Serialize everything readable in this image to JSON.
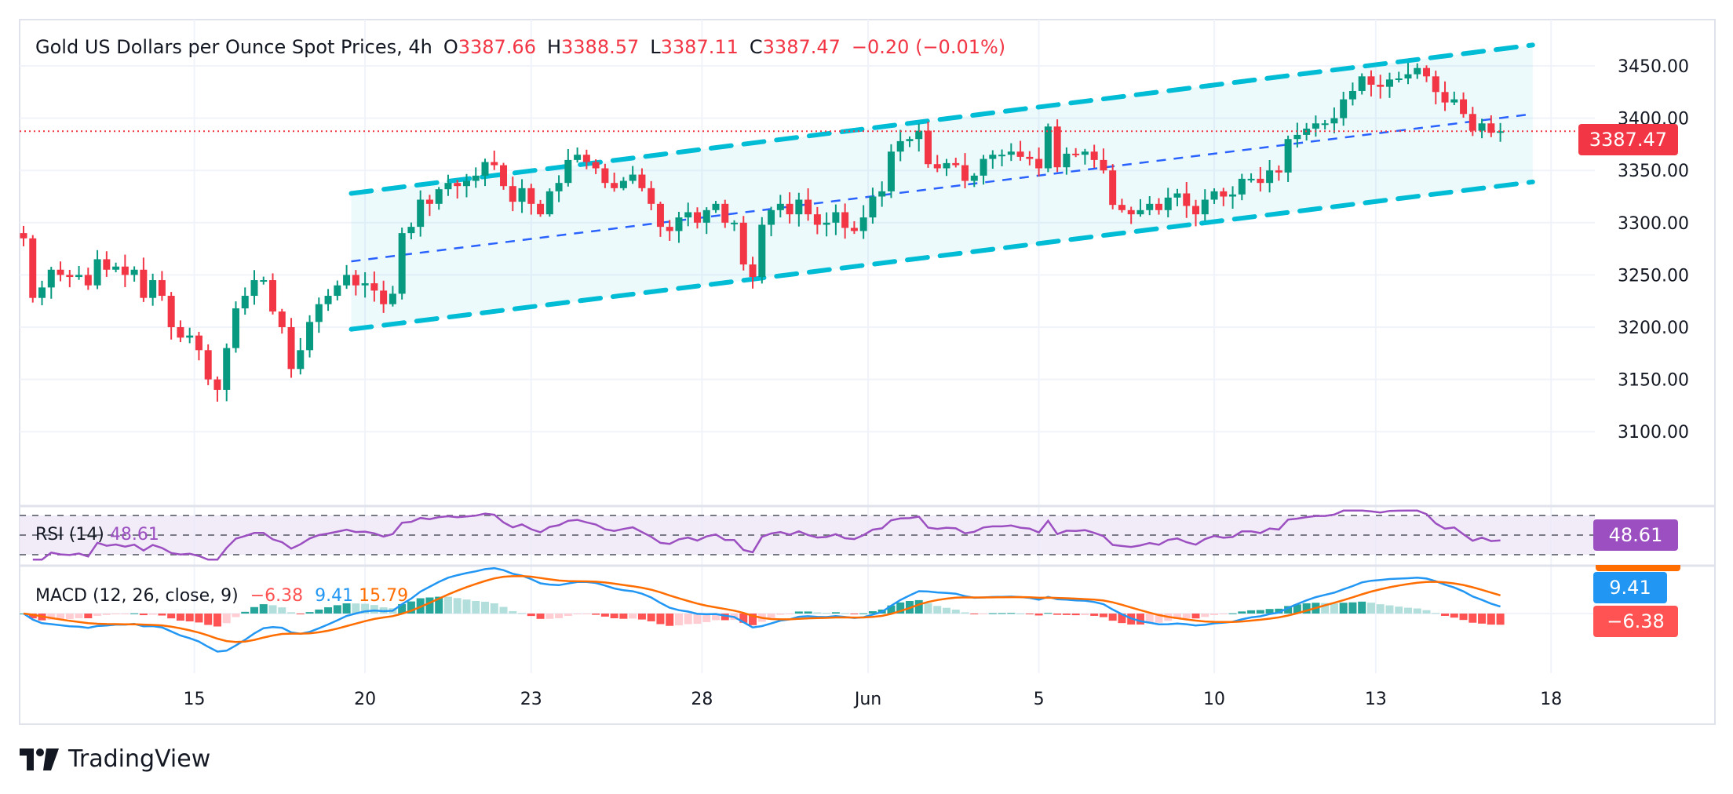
{
  "header": {
    "symbol_title": "Gold US Dollars per Ounce Spot Prices, 4h",
    "open_key": "O",
    "open_val": "3387.66",
    "high_key": "H",
    "high_val": "3388.57",
    "low_key": "L",
    "low_val": "3387.11",
    "close_key": "C",
    "close_val": "3387.47",
    "change": "−0.20 (−0.01%)"
  },
  "price_tag": "3387.47",
  "rsi": {
    "label": "RSI (14)",
    "value": "48.61",
    "tag": "48.61"
  },
  "macd": {
    "label": "MACD (12, 26, close, 9)",
    "hist_value": "−6.38",
    "macd_value": "9.41",
    "signal_value": "15.79",
    "tag_macd": "9.41",
    "tag_hist": "−6.38"
  },
  "brand": {
    "name": "TradingView",
    "icon": "tradingview-logo-icon"
  },
  "colors": {
    "up": "#089981",
    "down": "#f23645",
    "channel": "#00bcd4",
    "channel_fill": "#e0f7fa",
    "median": "#2962ff",
    "rsi_line": "#9c4fc1",
    "rsi_fill": "#ede7f6",
    "macd_line": "#2196f3",
    "signal_line": "#ff6d00",
    "hist_up_strong": "#26a69a",
    "hist_up_weak": "#b2dfdb",
    "hist_down_strong": "#ff5252",
    "hist_down_weak": "#ffcdd2",
    "last_price": "#f23645"
  },
  "chart_data": {
    "type": "candlestick",
    "title": "Gold US Dollars per Ounce Spot Prices, 4h",
    "y_ticks": [
      "3450.00",
      "3400.00",
      "3350.00",
      "3300.00",
      "3250.00",
      "3200.00",
      "3150.00",
      "3100.00"
    ],
    "ylim": [
      3085,
      3480
    ],
    "x_ticks": [
      "15",
      "20",
      "23",
      "28",
      "Jun",
      "5",
      "10",
      "13",
      "18"
    ],
    "x_tick_index": [
      18.5,
      37,
      55,
      73.5,
      91.5,
      110,
      129,
      146.5,
      165.5
    ],
    "last_price": 3387.47,
    "closes": [
      3285,
      3228,
      3238,
      3255,
      3250,
      3248,
      3250,
      3240,
      3265,
      3255,
      3258,
      3250,
      3255,
      3228,
      3245,
      3230,
      3200,
      3190,
      3192,
      3178,
      3150,
      3140,
      3180,
      3218,
      3230,
      3245,
      3245,
      3215,
      3200,
      3160,
      3178,
      3205,
      3222,
      3230,
      3240,
      3250,
      3240,
      3242,
      3235,
      3222,
      3232,
      3290,
      3296,
      3322,
      3318,
      3332,
      3338,
      3335,
      3340,
      3345,
      3358,
      3355,
      3335,
      3320,
      3333,
      3318,
      3308,
      3330,
      3338,
      3360,
      3365,
      3358,
      3352,
      3338,
      3333,
      3340,
      3346,
      3333,
      3318,
      3296,
      3292,
      3305,
      3310,
      3300,
      3312,
      3318,
      3300,
      3300,
      3260,
      3248,
      3298,
      3312,
      3318,
      3308,
      3322,
      3308,
      3298,
      3300,
      3310,
      3295,
      3292,
      3305,
      3325,
      3330,
      3368,
      3378,
      3380,
      3388,
      3356,
      3352,
      3357,
      3355,
      3340,
      3345,
      3361,
      3365,
      3365,
      3368,
      3363,
      3361,
      3352,
      3392,
      3353,
      3366,
      3365,
      3368,
      3360,
      3350,
      3317,
      3312,
      3308,
      3312,
      3318,
      3312,
      3324,
      3328,
      3316,
      3308,
      3322,
      3330,
      3325,
      3327,
      3342,
      3342,
      3338,
      3350,
      3348,
      3380,
      3384,
      3390,
      3395,
      3395,
      3400,
      3418,
      3426,
      3440,
      3432,
      3430,
      3437,
      3438,
      3442,
      3448,
      3440,
      3425,
      3415,
      3418,
      3404,
      3388,
      3395,
      3386,
      3387.47
    ],
    "median_channel": {
      "upper_start": 3328,
      "upper_end": 3470,
      "median_start": 3263,
      "median_end": 3404,
      "lower_start": 3198,
      "lower_end": 3339,
      "start_index": 35.5,
      "end_index": 163.5
    },
    "rsi": {
      "name": "RSI (14)",
      "levels": [
        70,
        50,
        30
      ],
      "last": 48.61
    },
    "macd": {
      "name": "MACD (12, 26, close, 9)",
      "histogram_last": -6.38,
      "macd_last": 9.41,
      "signal_last": 15.79
    }
  }
}
